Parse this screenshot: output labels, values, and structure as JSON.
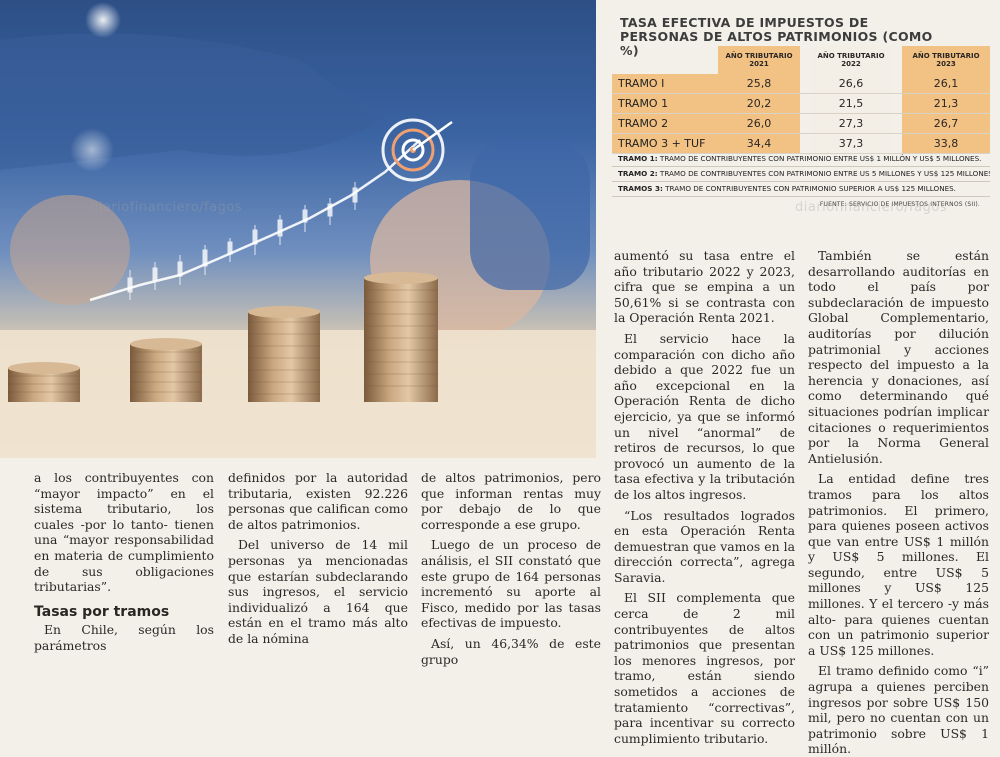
{
  "table": {
    "title": "TASA EFECTIVA DE IMPUESTOS DE PERSONAS DE ALTOS PATRIMONIOS (COMO %)",
    "headers": [
      "AÑO TRIBUTARIO 2021",
      "AÑO TRIBUTARIO 2022",
      "AÑO TRIBUTARIO 2023"
    ],
    "rows": [
      {
        "label": "TRAMO I",
        "values": [
          "25,8",
          "26,6",
          "26,1"
        ]
      },
      {
        "label": "TRAMO 1",
        "values": [
          "20,2",
          "21,5",
          "21,3"
        ]
      },
      {
        "label": "TRAMO 2",
        "values": [
          "26,0",
          "27,3",
          "26,7"
        ]
      },
      {
        "label": "TRAMO 3 + TUF",
        "values": [
          "34,4",
          "37,3",
          "33,8"
        ]
      }
    ],
    "notes": [
      {
        "label": "TRAMO 1:",
        "text": " TRAMO DE CONTRIBUYENTES CON PATRIMONIO ENTRE US$ 1 MILLÓN Y US$ 5 MILLONES."
      },
      {
        "label": "TRAMO 2:",
        "text": " TRAMO DE CONTRIBUYENTES CON PATRIMONIO ENTRE US 5 MILLONES Y US$ 125 MILLONES."
      },
      {
        "label": "TRAMOS 3:",
        "text": " TRAMO DE CONTRIBUYENTES CON PATRIMONIO SUPERIOR A US$ 125 MILLONES."
      }
    ],
    "source": "FUENTE: SERVICIO DE IMPUESTOS INTERNOS (SII)."
  },
  "watermark": "diariofinanciero/fagos",
  "article": {
    "col1": {
      "p1": "a los contribuyentes con “mayor impacto” en el sistema tributario, los cuales -por lo tanto- tienen una “mayor responsabilidad en materia de cumplimiento de sus obligaciones tributarias”.",
      "subhead": "Tasas por tramos",
      "p2": "En Chile, según los parámetros"
    },
    "col2": {
      "p1": "definidos por la autoridad tributaria, existen 92.226 personas que califican como de altos patrimonios.",
      "p2": "Del universo de 14 mil personas ya mencionadas que estarían subdeclarando sus ingresos, el servicio individualizó a 164 que están en el tramo más alto de la nómina"
    },
    "col3": {
      "p1": "de altos patrimonios, pero que informan rentas muy por debajo de lo que corresponde a ese grupo.",
      "p2": "Luego de un proceso de análisis, el SII constató que este grupo de 164 personas incrementó su aporte al Fisco, medido por las tasas efectivas de impuesto.",
      "p3": "Así, un 46,34% de este grupo"
    },
    "col4": {
      "p1": "aumentó su tasa entre el año tributario 2022 y 2023, cifra que se empina a un 50,61% si se contrasta con la Operación Renta 2021.",
      "p2": "El servicio hace la comparación con dicho año debido a que 2022 fue un año excepcional en la Operación Renta de dicho ejercicio, ya que se informó un nivel “anormal” de retiros de recursos, lo que provocó un aumento de la tasa efectiva y la tributación de los altos ingresos.",
      "p3": "“Los resultados logrados en esta Operación Renta demuestran que vamos en la dirección correcta”, agrega Saravia.",
      "p4": "El SII complementa que cerca de 2 mil contribuyentes de altos patrimonios que presentan los menores ingresos, por tramo, están siendo sometidos a acciones de tratamiento “correctivas”, para incentivar su correcto cumplimiento tributario."
    },
    "col5": {
      "p1": "También se están desarrollando auditorías en todo el país por subdeclaración de impuesto Global Complementario, auditorías por dilución patrimonial y acciones respecto del impuesto a la herencia y donaciones, así como determinando qué situaciones podrían implicar citaciones o requerimientos por la Norma General Antielusión.",
      "p2": "La entidad define tres tramos para los altos patrimonios. El primero, para quienes poseen activos que van entre US$ 1 millón y US$ 5 millones. El segundo, entre US$ 5 millones y US$ 125 millones. Y el tercero -y más alto- para quienes cuentan con un patrimonio superior a US$ 125 millones.",
      "p3": "El tramo definido como “i” agrupa a quienes perciben ingresos por sobre US$ 150 mil, pero no cuentan con un patrimonio sobre US$ 1 millón."
    }
  }
}
